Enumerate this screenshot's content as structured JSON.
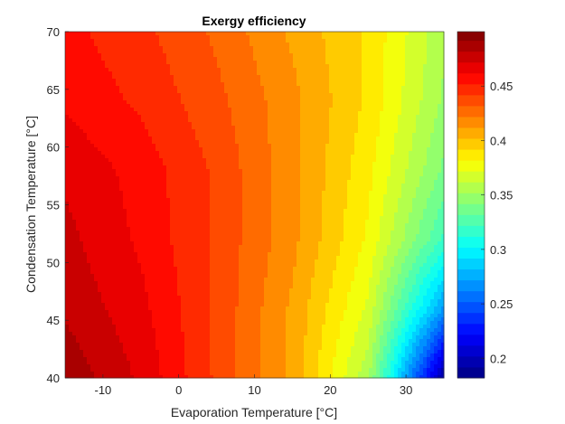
{
  "chart_data": {
    "type": "heatmap",
    "style": "filled-contour",
    "title": "Exergy efficiency",
    "xlabel": "Evaporation Temperature [°C]",
    "ylabel": "Condensation Temperature [°C]",
    "xlim": [
      -15,
      35
    ],
    "ylim": [
      40,
      70
    ],
    "xticks": [
      -10,
      0,
      10,
      20,
      30
    ],
    "yticks": [
      40,
      45,
      50,
      55,
      60,
      65,
      70
    ],
    "colormap": "jet",
    "clim": [
      0.182,
      0.5
    ],
    "colorbar_ticks": [
      0.2,
      0.25,
      0.3,
      0.35,
      0.4,
      0.45
    ],
    "colorbar_tick_labels": [
      "0.2",
      "0.25",
      "0.3",
      "0.35",
      "0.4",
      "0.45"
    ],
    "grid_x": [
      -15,
      -5,
      5,
      15,
      25,
      35
    ],
    "grid_y": [
      40,
      46,
      52,
      58,
      64,
      70
    ],
    "z": [
      [
        0.49,
        0.47,
        0.44,
        0.41,
        0.355,
        0.19
      ],
      [
        0.48,
        0.465,
        0.44,
        0.41,
        0.37,
        0.27
      ],
      [
        0.475,
        0.46,
        0.44,
        0.415,
        0.38,
        0.32
      ],
      [
        0.47,
        0.458,
        0.44,
        0.415,
        0.385,
        0.34
      ],
      [
        0.46,
        0.45,
        0.435,
        0.415,
        0.39,
        0.35
      ],
      [
        0.455,
        0.445,
        0.43,
        0.41,
        0.39,
        0.355
      ]
    ],
    "level_step": 0.01
  }
}
